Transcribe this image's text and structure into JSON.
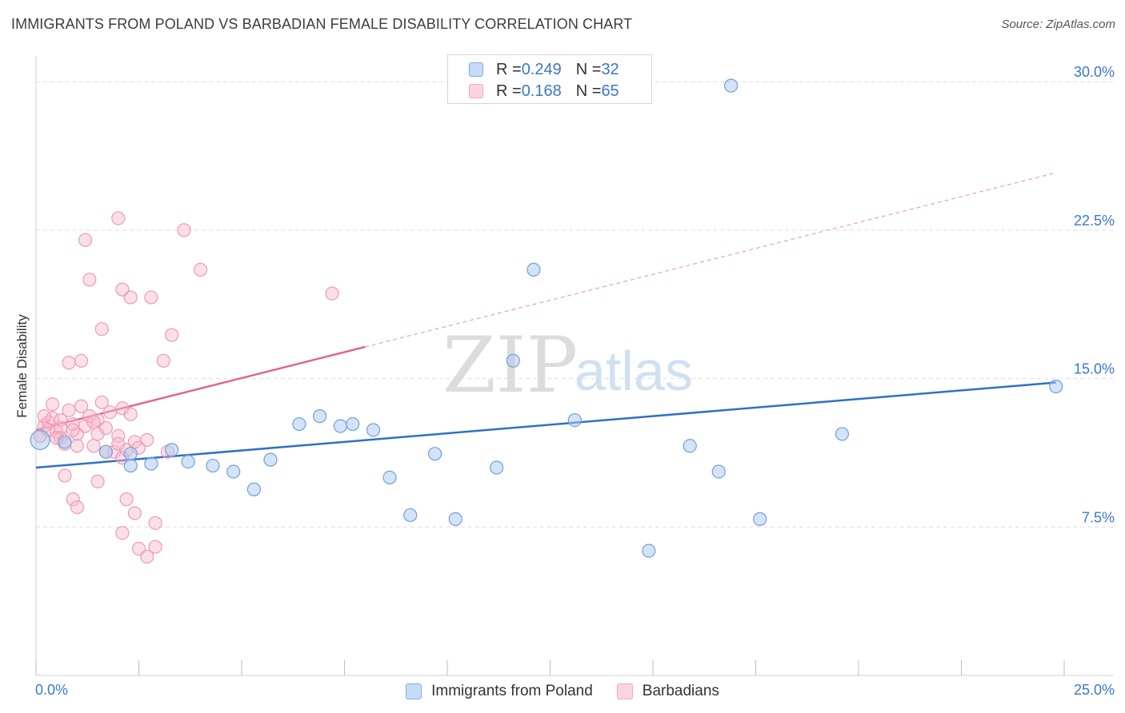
{
  "title": "IMMIGRANTS FROM POLAND VS BARBADIAN FEMALE DISABILITY CORRELATION CHART",
  "source": "Source: ZipAtlas.com",
  "watermark": {
    "zip": "ZIP",
    "atlas": "atlas"
  },
  "legend": {
    "poland": {
      "r_label": "R = ",
      "r_value": "0.249",
      "n_label": "N = ",
      "n_value": "32"
    },
    "barbadian": {
      "r_label": "R = ",
      "r_value": "0.168",
      "n_label": "N = ",
      "n_value": "65"
    }
  },
  "bottom_legend": {
    "poland": "Immigrants from Poland",
    "barbadian": "Barbadians"
  },
  "chart_data": {
    "type": "scatter",
    "title": "IMMIGRANTS FROM POLAND VS BARBADIAN FEMALE DISABILITY CORRELATION CHART",
    "xlabel": "",
    "ylabel": "Female Disability",
    "xlim": [
      0,
      25
    ],
    "ylim": [
      0,
      31.3
    ],
    "x_tick_labels": [
      "0.0%",
      "25.0%"
    ],
    "y_ticks": [
      7.5,
      15.0,
      22.5,
      30.0
    ],
    "y_tick_labels": [
      "7.5%",
      "15.0%",
      "22.5%",
      "30.0%"
    ],
    "grid": "horizontal dashed",
    "legend_placement": "top-center and bottom",
    "colors": {
      "poland": "#7eaee8",
      "poland_line": "#2f6fcb",
      "barbadian": "#f4a6bf",
      "barbadian_line": "#e0648e"
    },
    "series": [
      {
        "name": "Immigrants from Poland",
        "points": [
          [
            0.1,
            11.9
          ],
          [
            0.7,
            11.8
          ],
          [
            1.7,
            11.3
          ],
          [
            2.3,
            11.2
          ],
          [
            2.3,
            10.6
          ],
          [
            2.8,
            10.7
          ],
          [
            3.3,
            11.4
          ],
          [
            3.7,
            10.8
          ],
          [
            4.3,
            10.6
          ],
          [
            4.8,
            10.3
          ],
          [
            5.3,
            9.4
          ],
          [
            5.7,
            10.9
          ],
          [
            6.4,
            12.7
          ],
          [
            6.9,
            13.1
          ],
          [
            7.4,
            12.6
          ],
          [
            7.7,
            12.7
          ],
          [
            8.2,
            12.4
          ],
          [
            8.6,
            10.0
          ],
          [
            9.1,
            8.1
          ],
          [
            9.7,
            11.2
          ],
          [
            10.2,
            7.9
          ],
          [
            11.2,
            10.5
          ],
          [
            11.6,
            15.9
          ],
          [
            12.1,
            20.5
          ],
          [
            13.1,
            12.9
          ],
          [
            14.9,
            6.3
          ],
          [
            15.9,
            11.6
          ],
          [
            16.6,
            10.3
          ],
          [
            16.9,
            29.8
          ],
          [
            17.6,
            7.9
          ],
          [
            19.6,
            12.2
          ],
          [
            24.8,
            14.6
          ]
        ],
        "trend": {
          "x": [
            0,
            24.8
          ],
          "y": [
            10.5,
            14.8
          ],
          "style": "solid"
        }
      },
      {
        "name": "Barbadians",
        "points": [
          [
            0.1,
            12.1
          ],
          [
            0.2,
            12.6
          ],
          [
            0.3,
            12.8
          ],
          [
            0.3,
            12.4
          ],
          [
            0.4,
            13.0
          ],
          [
            0.5,
            12.3
          ],
          [
            0.6,
            12.9
          ],
          [
            0.6,
            12.5
          ],
          [
            0.6,
            12.0
          ],
          [
            0.7,
            11.7
          ],
          [
            0.8,
            13.4
          ],
          [
            0.9,
            12.7
          ],
          [
            1.0,
            12.2
          ],
          [
            1.0,
            11.6
          ],
          [
            1.1,
            13.6
          ],
          [
            1.2,
            12.6
          ],
          [
            1.3,
            13.1
          ],
          [
            1.4,
            11.6
          ],
          [
            1.5,
            12.9
          ],
          [
            1.5,
            12.2
          ],
          [
            1.6,
            13.8
          ],
          [
            1.7,
            12.5
          ],
          [
            1.8,
            13.3
          ],
          [
            1.9,
            11.3
          ],
          [
            2.0,
            12.1
          ],
          [
            2.1,
            13.5
          ],
          [
            2.1,
            11.0
          ],
          [
            2.2,
            11.4
          ],
          [
            2.3,
            13.2
          ],
          [
            2.4,
            11.8
          ],
          [
            2.5,
            11.5
          ],
          [
            1.2,
            22.0
          ],
          [
            2.0,
            23.1
          ],
          [
            3.6,
            22.5
          ],
          [
            4.0,
            20.5
          ],
          [
            1.3,
            20.0
          ],
          [
            2.1,
            19.5
          ],
          [
            2.3,
            19.1
          ],
          [
            2.8,
            19.1
          ],
          [
            7.2,
            19.3
          ],
          [
            1.6,
            17.5
          ],
          [
            3.3,
            17.2
          ],
          [
            0.8,
            15.8
          ],
          [
            1.1,
            15.9
          ],
          [
            3.1,
            15.9
          ],
          [
            0.4,
            13.7
          ],
          [
            0.7,
            10.1
          ],
          [
            0.9,
            8.9
          ],
          [
            1.0,
            8.5
          ],
          [
            1.5,
            9.8
          ],
          [
            2.1,
            7.2
          ],
          [
            2.2,
            8.9
          ],
          [
            2.4,
            8.2
          ],
          [
            2.5,
            6.4
          ],
          [
            2.7,
            6.0
          ],
          [
            2.9,
            6.5
          ],
          [
            2.9,
            7.7
          ],
          [
            2.7,
            11.9
          ],
          [
            3.2,
            11.3
          ],
          [
            1.7,
            11.3
          ],
          [
            2.0,
            11.7
          ],
          [
            0.5,
            12.0
          ],
          [
            0.9,
            12.4
          ],
          [
            1.4,
            12.8
          ],
          [
            0.2,
            13.1
          ]
        ],
        "trend": {
          "x": [
            0,
            8
          ],
          "y": [
            12.4,
            16.6
          ],
          "style": "solid"
        },
        "trend_extension": {
          "x": [
            8,
            24.8
          ],
          "y": [
            16.6,
            25.4
          ],
          "style": "dashed"
        }
      }
    ]
  }
}
